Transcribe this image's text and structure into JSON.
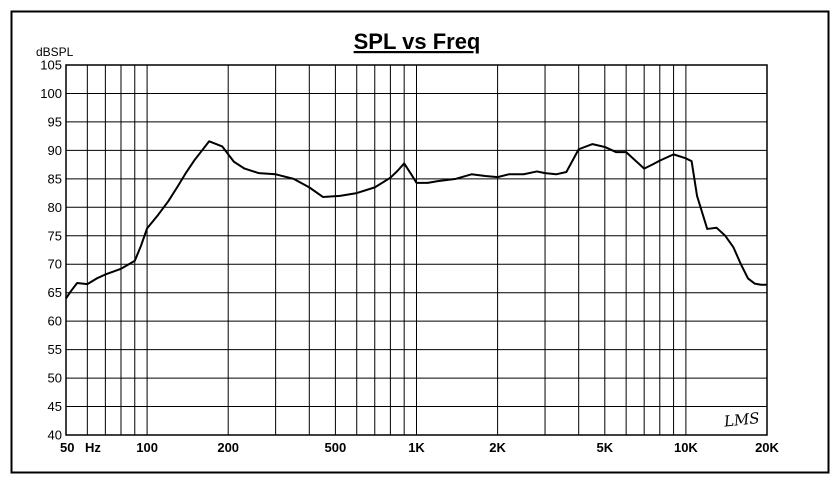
{
  "chart_data": {
    "type": "line",
    "title": "SPL vs Freq",
    "ylabel": "dBSPL",
    "xlabel": "",
    "x_scale": "log",
    "xlim": [
      50,
      20000
    ],
    "ylim": [
      40,
      105
    ],
    "grid": true,
    "legend": "none",
    "x_tick_labels": [
      {
        "value": 50,
        "label": "50"
      },
      {
        "value": 100,
        "label": "100"
      },
      {
        "value": 200,
        "label": "200"
      },
      {
        "value": 500,
        "label": "500"
      },
      {
        "value": 1000,
        "label": "1K"
      },
      {
        "value": 2000,
        "label": "2K"
      },
      {
        "value": 5000,
        "label": "5K"
      },
      {
        "value": 10000,
        "label": "10K"
      },
      {
        "value": 20000,
        "label": "20K"
      }
    ],
    "x_unit_label": "Hz",
    "y_ticks": [
      40,
      45,
      50,
      55,
      60,
      65,
      70,
      75,
      80,
      85,
      90,
      95,
      100,
      105
    ],
    "watermark": "LMS",
    "series": [
      {
        "x": [
          50,
          52,
          55,
          60,
          65,
          70,
          80,
          90,
          95,
          100,
          110,
          120,
          130,
          140,
          150,
          170,
          190,
          210,
          230,
          260,
          300,
          350,
          400,
          450,
          520,
          600,
          700,
          800,
          850,
          900,
          950,
          1000,
          1100,
          1200,
          1400,
          1600,
          1800,
          2000,
          2200,
          2500,
          2800,
          3000,
          3300,
          3600,
          4000,
          4500,
          5000,
          5500,
          6000,
          7000,
          7500,
          8000,
          9000,
          10000,
          10500,
          11000,
          12000,
          13000,
          14000,
          15000,
          16000,
          17000,
          18000,
          19000,
          20000
        ],
        "y": [
          64,
          65.2,
          66.7,
          66.5,
          67.5,
          68.2,
          69.2,
          70.6,
          73.3,
          76.3,
          78.7,
          81.1,
          83.7,
          86.2,
          88.3,
          91.6,
          90.7,
          88.0,
          86.8,
          86.0,
          85.8,
          85.0,
          83.5,
          81.8,
          82.0,
          82.5,
          83.5,
          85.2,
          86.4,
          87.7,
          86.0,
          84.3,
          84.3,
          84.6,
          85.0,
          85.8,
          85.5,
          85.3,
          85.8,
          85.8,
          86.3,
          86.0,
          85.8,
          86.2,
          90.2,
          91.1,
          90.6,
          89.7,
          89.7,
          86.8,
          87.5,
          88.2,
          89.3,
          88.6,
          88.1,
          82.0,
          76.2,
          76.4,
          75.0,
          73.0,
          70.0,
          67.5,
          66.6,
          66.4,
          66.4
        ]
      }
    ]
  }
}
